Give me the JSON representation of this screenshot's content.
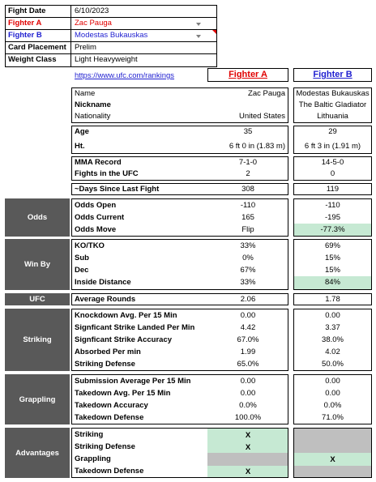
{
  "header": {
    "fight_date_label": "Fight Date",
    "fight_date": "6/10/2023",
    "fighter_a_label": "Fighter A",
    "fighter_a": "Zac Pauga",
    "fighter_b_label": "Fighter B",
    "fighter_b": "Modestas Bukauskas",
    "card_placement_label": "Card Placement",
    "card_placement": "Prelim",
    "weight_class_label": "Weight Class",
    "weight_class": "Light Heavyweight"
  },
  "link": "https://www.ufc.com/rankings",
  "col_a": "Fighter A",
  "col_b": "Fighter B",
  "bio": {
    "name_label": "Name",
    "name_a": "Zac Pauga",
    "name_b": "Modestas Bukauskas",
    "nickname_label": "Nickname",
    "nickname_a": "",
    "nickname_b": "The Baltic Gladiator",
    "nationality_label": "Nationality",
    "nationality_a": "United States",
    "nationality_b": "Lithuania"
  },
  "physical": {
    "age_label": "Age",
    "age_a": "35",
    "age_b": "29",
    "ht_label": "Ht.",
    "ht_a": "6 ft 0 in (1.83 m)",
    "ht_b": "6 ft 3 in (1.91 m)"
  },
  "record": {
    "mma_label": "MMA Record",
    "mma_a": "7-1-0",
    "mma_b": "14-5-0",
    "ufc_label": "Fights in the UFC",
    "ufc_a": "2",
    "ufc_b": "0"
  },
  "days": {
    "label": "~Days Since Last Fight",
    "a": "308",
    "b": "119"
  },
  "odds": {
    "section": "Odds",
    "open_label": "Odds Open",
    "open_a": "-110",
    "open_b": "-110",
    "current_label": "Odds Current",
    "current_a": "165",
    "current_b": "-195",
    "move_label": "Odds Move",
    "move_a": "Flip",
    "move_b": "-77.3%"
  },
  "winby": {
    "section": "Win By",
    "ko_label": "KO/TKO",
    "ko_a": "33%",
    "ko_b": "69%",
    "sub_label": "Sub",
    "sub_a": "0%",
    "sub_b": "15%",
    "dec_label": "Dec",
    "dec_a": "67%",
    "dec_b": "15%",
    "inside_label": "Inside Distance",
    "inside_a": "33%",
    "inside_b": "84%"
  },
  "ufc": {
    "section": "UFC",
    "label": "Average Rounds",
    "a": "2.06",
    "b": "1.78"
  },
  "striking": {
    "section": "Striking",
    "kd_label": "Knockdown Avg. Per 15 Min",
    "kd_a": "0.00",
    "kd_b": "0.00",
    "ssl_label": "Signficant Strike Landed Per Min",
    "ssl_a": "4.42",
    "ssl_b": "3.37",
    "ssa_label": "Signficant Strike Accuracy",
    "ssa_a": "67.0%",
    "ssa_b": "38.0%",
    "abs_label": "Absorbed Per min",
    "abs_a": "1.99",
    "abs_b": "4.02",
    "def_label": "Striking Defense",
    "def_a": "65.0%",
    "def_b": "50.0%"
  },
  "grappling": {
    "section": "Grappling",
    "sub_label": "Submission Average  Per 15 Min",
    "sub_a": "0.00",
    "sub_b": "0.00",
    "td_label": "Takedown Avg. Per 15 Min",
    "td_a": "0.00",
    "td_b": "0.00",
    "tda_label": "Takedown Accuracy",
    "tda_a": "0.0%",
    "tda_b": "0.0%",
    "tdd_label": "Takedown Defense",
    "tdd_a": "100.0%",
    "tdd_b": "71.0%"
  },
  "advantages": {
    "section": "Advantages",
    "striking_label": "Striking",
    "striking_a": "X",
    "striking_b": "",
    "strdef_label": "Striking Defense",
    "strdef_a": "X",
    "strdef_b": "",
    "grappling_label": "Grappling",
    "grappling_a": "",
    "grappling_b": "X",
    "tdd_label": "Takedown Defense",
    "tdd_a": "X",
    "tdd_b": ""
  },
  "colors": {
    "fighter_a": "#e00000",
    "fighter_b": "#1f1fd0",
    "highlight": "#c6e9d3",
    "section_bg": "#595959"
  }
}
